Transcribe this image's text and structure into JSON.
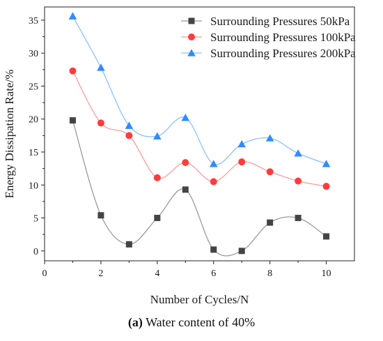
{
  "chart_data": {
    "type": "line",
    "xlabel": "Number of Cycles/N",
    "ylabel": "Energy Dissipation Rate/%",
    "xlim": [
      0,
      11
    ],
    "ylim": [
      -1.5,
      37
    ],
    "xticks": [
      0,
      2,
      4,
      6,
      8,
      10
    ],
    "yticks": [
      0,
      5,
      10,
      15,
      20,
      25,
      30,
      35
    ],
    "legend_position": "top-right",
    "smooth": true,
    "x": [
      1,
      2,
      3,
      4,
      5,
      6,
      7,
      8,
      9,
      10
    ],
    "series": [
      {
        "name": "Surrounding Pressures 50kPa",
        "marker": "square",
        "marker_color": "#444444",
        "line_color": "#9a9a9a",
        "values": [
          19.8,
          5.4,
          1.0,
          5.0,
          9.3,
          0.2,
          0.0,
          4.3,
          5.0,
          2.2
        ]
      },
      {
        "name": "Surrounding Pressures 100kPa",
        "marker": "circle",
        "marker_color": "#ff3b3b",
        "line_color": "#ff9a9a",
        "values": [
          27.3,
          19.4,
          17.5,
          11.1,
          13.4,
          10.5,
          13.5,
          12.0,
          10.6,
          9.8
        ]
      },
      {
        "name": "Surrounding Pressures 200kPa",
        "marker": "triangle",
        "marker_color": "#2f8cff",
        "line_color": "#8cc0ff",
        "values": [
          35.6,
          27.8,
          19.0,
          17.4,
          20.2,
          13.2,
          16.2,
          17.1,
          14.8,
          13.2
        ]
      }
    ]
  },
  "caption": {
    "label": "(a)",
    "text": " Water content of 40%"
  }
}
